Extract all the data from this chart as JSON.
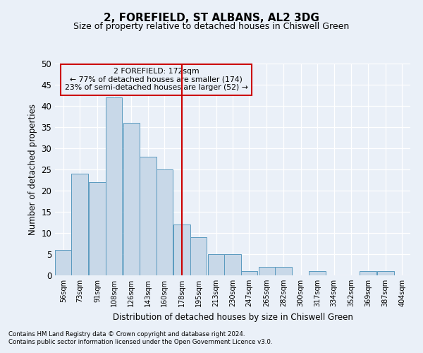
{
  "title": "2, FOREFIELD, ST ALBANS, AL2 3DG",
  "subtitle": "Size of property relative to detached houses in Chiswell Green",
  "xlabel": "Distribution of detached houses by size in Chiswell Green",
  "ylabel": "Number of detached properties",
  "bins": [
    56,
    73,
    91,
    108,
    126,
    143,
    160,
    178,
    195,
    213,
    230,
    247,
    265,
    282,
    300,
    317,
    334,
    352,
    369,
    387,
    404
  ],
  "counts": [
    6,
    24,
    22,
    42,
    36,
    28,
    25,
    12,
    9,
    5,
    5,
    1,
    2,
    2,
    0,
    1,
    0,
    0,
    1,
    1,
    0
  ],
  "bar_color": "#c8d8e8",
  "bar_edge_color": "#5a9abf",
  "annotation_text": "2 FOREFIELD: 172sqm\n← 77% of detached houses are smaller (174)\n23% of semi-detached houses are larger (52) →",
  "vline_color": "#cc0000",
  "vline_bin_index": 7,
  "box_edge_color": "#cc0000",
  "ylim": [
    0,
    50
  ],
  "yticks": [
    0,
    5,
    10,
    15,
    20,
    25,
    30,
    35,
    40,
    45,
    50
  ],
  "background_color": "#eaf0f8",
  "grid_color": "#ffffff",
  "title_fontsize": 11,
  "subtitle_fontsize": 9,
  "footer_line1": "Contains HM Land Registry data © Crown copyright and database right 2024.",
  "footer_line2": "Contains public sector information licensed under the Open Government Licence v3.0."
}
